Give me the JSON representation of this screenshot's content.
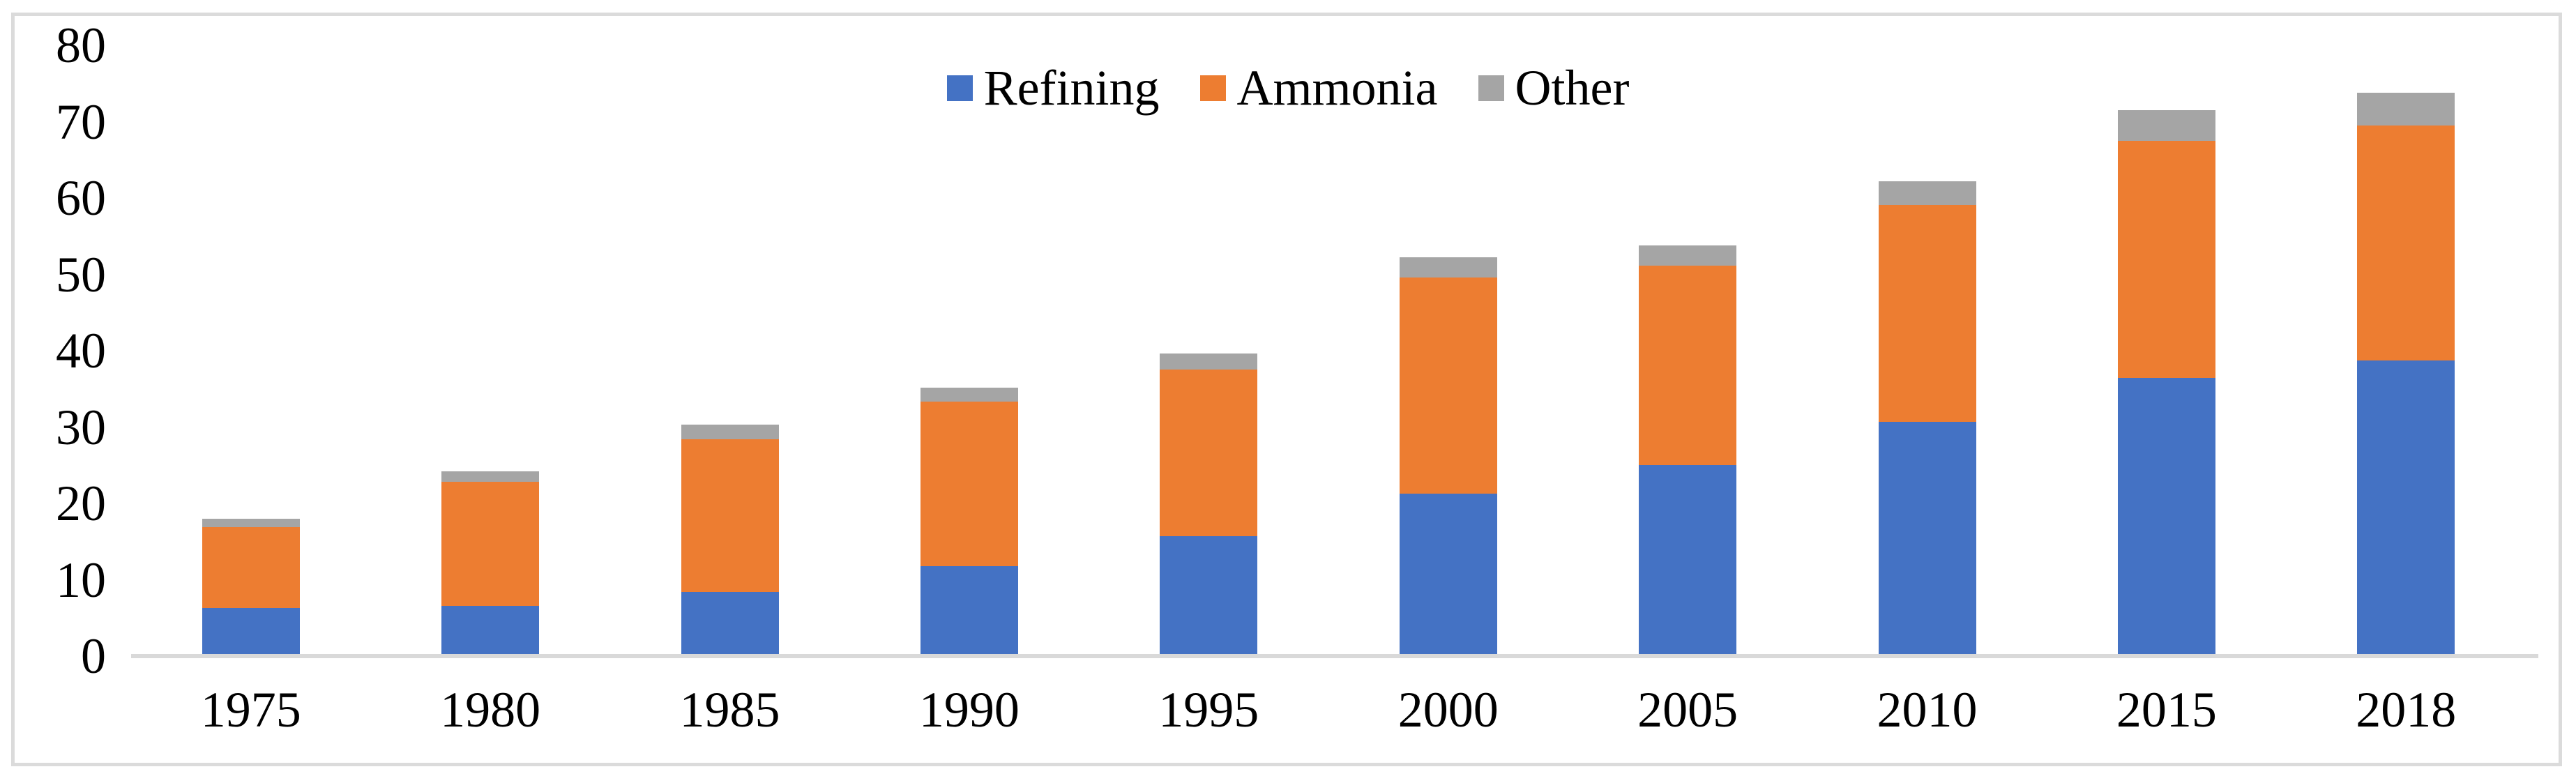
{
  "figure": {
    "background": "#FFFFFF",
    "frame_border_color": "#DBDBDB"
  },
  "chart_data": {
    "type": "bar",
    "stacked": true,
    "title": "",
    "xlabel": "",
    "ylabel": "",
    "categories": [
      "1975",
      "1980",
      "1985",
      "1990",
      "1995",
      "2000",
      "2005",
      "2010",
      "2015",
      "2018"
    ],
    "series": [
      {
        "name": "Refining",
        "color": "#4472C4",
        "values": [
          6.3,
          6.6,
          8.4,
          11.8,
          15.7,
          21.3,
          25.0,
          30.7,
          36.4,
          38.7
        ]
      },
      {
        "name": "Ammonia",
        "color": "#ED7D31",
        "values": [
          10.6,
          16.2,
          20.0,
          21.5,
          21.8,
          28.3,
          26.1,
          28.4,
          31.1,
          30.8
        ]
      },
      {
        "name": "Other",
        "color": "#A5A5A5",
        "values": [
          1.1,
          1.4,
          1.9,
          1.9,
          2.1,
          2.6,
          2.7,
          3.1,
          4.0,
          4.3
        ]
      }
    ],
    "totals": [
      18.0,
      24.2,
      30.3,
      35.2,
      39.6,
      52.2,
      53.8,
      62.2,
      71.5,
      73.8
    ],
    "ylim": [
      0,
      80
    ],
    "yticks": [
      0,
      10,
      20,
      30,
      40,
      50,
      60,
      70,
      80
    ],
    "grid": false,
    "legend_position": "top-center",
    "axis_line_color": "#D9D9D9",
    "tick_label_color": "#000000"
  }
}
